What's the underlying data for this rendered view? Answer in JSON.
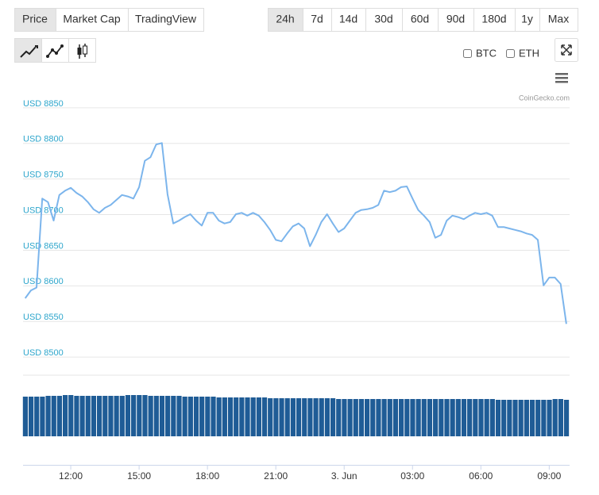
{
  "ui": {
    "tabs": [
      "Price",
      "Market Cap",
      "TradingView"
    ],
    "active_tab": 0,
    "ranges": [
      "24h",
      "7d",
      "14d",
      "30d",
      "60d",
      "90d",
      "180d",
      "1y",
      "Max"
    ],
    "active_range": 0,
    "compare": [
      "BTC",
      "ETH"
    ],
    "credit": "CoinGecko.com"
  },
  "chart_data": {
    "type": "line",
    "color": "#7cb5ec",
    "grid": true,
    "categories": [
      null,
      null,
      null,
      null,
      null,
      null,
      null,
      null,
      "12:00",
      null,
      null,
      null,
      null,
      null,
      null,
      null,
      null,
      null,
      null,
      null,
      "15:00",
      null,
      null,
      null,
      null,
      null,
      null,
      null,
      null,
      null,
      null,
      null,
      "18:00",
      null,
      null,
      null,
      null,
      null,
      null,
      null,
      null,
      null,
      null,
      null,
      "21:00",
      null,
      null,
      null,
      null,
      null,
      null,
      null,
      null,
      null,
      null,
      null,
      "3. Jun",
      null,
      null,
      null,
      null,
      null,
      null,
      null,
      null,
      null,
      null,
      null,
      "03:00",
      null,
      null,
      null,
      null,
      null,
      null,
      null,
      null,
      null,
      null,
      null,
      "06:00",
      null,
      null,
      null,
      null,
      null,
      null,
      null,
      null,
      null,
      null,
      null,
      "09:00",
      null,
      null,
      null
    ],
    "values": [
      8577,
      8588,
      8592,
      8717,
      8712,
      8686,
      8722,
      8728,
      8732,
      8725,
      8720,
      8712,
      8702,
      8697,
      8704,
      8708,
      8715,
      8722,
      8720,
      8717,
      8733,
      8770,
      8775,
      8793,
      8795,
      8723,
      8682,
      8686,
      8691,
      8695,
      8686,
      8679,
      8697,
      8697,
      8686,
      8682,
      8684,
      8695,
      8697,
      8693,
      8697,
      8693,
      8684,
      8673,
      8659,
      8657,
      8668,
      8678,
      8682,
      8675,
      8650,
      8666,
      8684,
      8695,
      8682,
      8670,
      8675,
      8686,
      8697,
      8701,
      8702,
      8704,
      8708,
      8728,
      8726,
      8728,
      8733,
      8734,
      8717,
      8701,
      8693,
      8684,
      8662,
      8666,
      8686,
      8693,
      8691,
      8688,
      8693,
      8697,
      8695,
      8697,
      8693,
      8677,
      8677,
      8675,
      8673,
      8671,
      8668,
      8666,
      8659,
      8595,
      8606,
      8606,
      8597,
      8541
    ],
    "ylim": [
      8470,
      8880
    ],
    "yticks": [
      {
        "value": 8500,
        "label": "USD 8500"
      },
      {
        "value": 8550,
        "label": "USD 8550"
      },
      {
        "value": 8600,
        "label": "USD 8600"
      },
      {
        "value": 8650,
        "label": "USD 8650"
      },
      {
        "value": 8700,
        "label": "USD 8700"
      },
      {
        "value": 8750,
        "label": "USD 8750"
      },
      {
        "value": 8800,
        "label": "USD 8800"
      },
      {
        "value": 8850,
        "label": "USD 8850"
      }
    ],
    "volume": {
      "color": "#1f5c96",
      "lim": [
        0,
        100
      ],
      "values": [
        50,
        50,
        50,
        50,
        51,
        51,
        51,
        52,
        52,
        51,
        51,
        51,
        51,
        51,
        51,
        51,
        51,
        51,
        52,
        52,
        52,
        52,
        51,
        51,
        51,
        51,
        51,
        51,
        50,
        50,
        50,
        50,
        50,
        50,
        49,
        49,
        49,
        49,
        49,
        49,
        49,
        49,
        49,
        48,
        48,
        48,
        48,
        48,
        48,
        48,
        48,
        48,
        48,
        48,
        48,
        47,
        47,
        47,
        47,
        47,
        47,
        47,
        47,
        47,
        47,
        47,
        47,
        47,
        47,
        47,
        47,
        47,
        47,
        47,
        47,
        47,
        47,
        47,
        47,
        47,
        47,
        47,
        47,
        46,
        46,
        46,
        46,
        46,
        46,
        46,
        46,
        46,
        46,
        47,
        47,
        46
      ]
    }
  }
}
